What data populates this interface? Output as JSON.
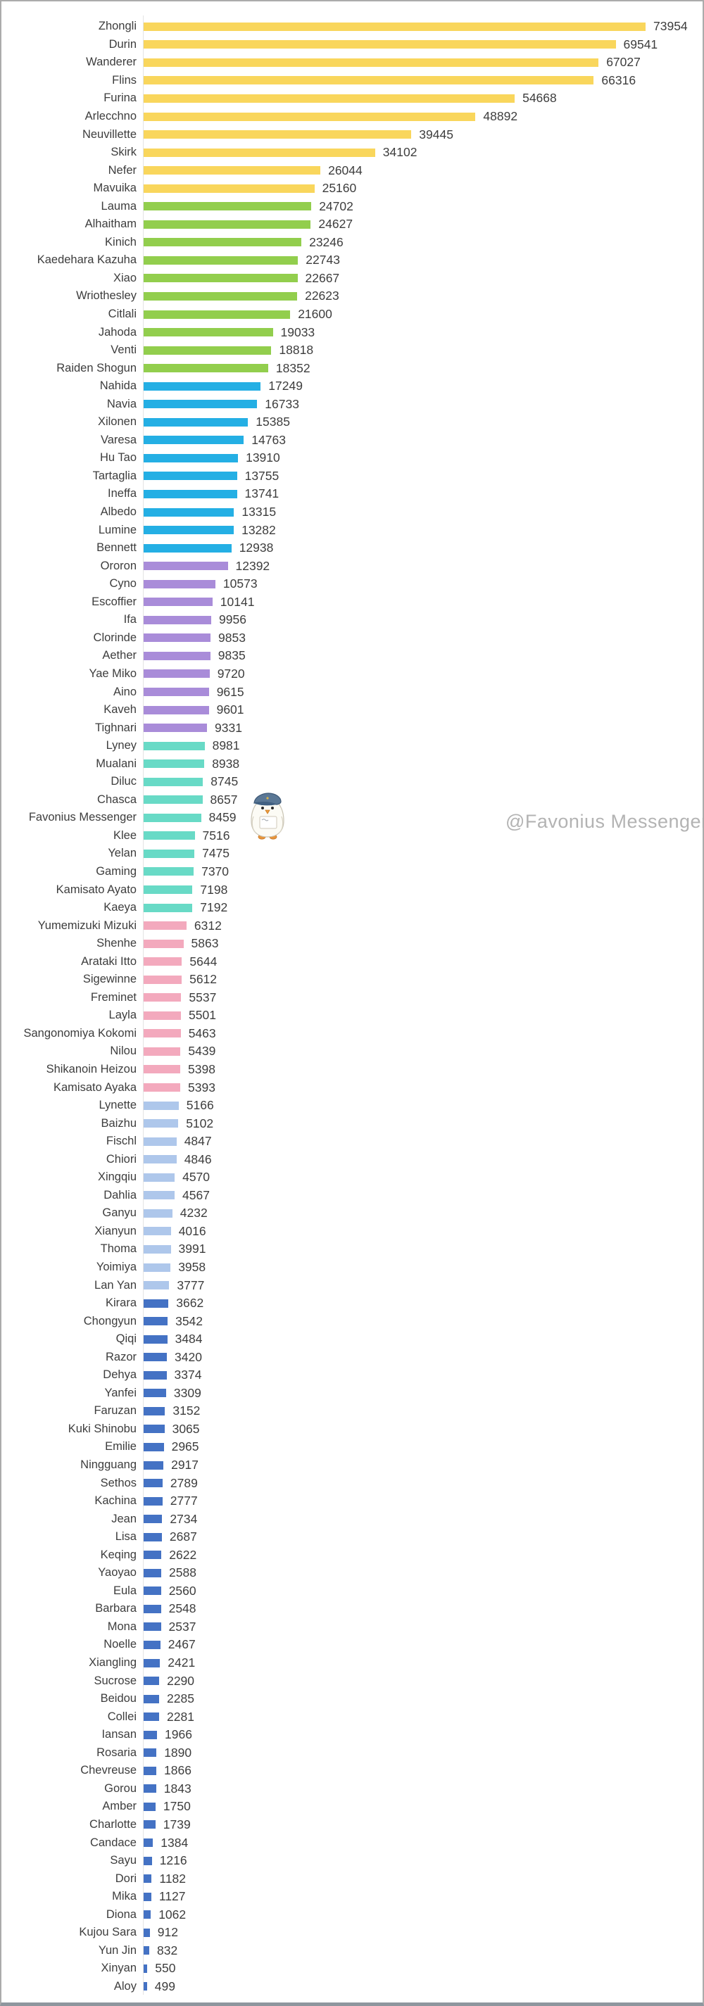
{
  "watermark": "@Favonius Messenger",
  "mascot": "favonius-messenger-bird",
  "colors": {
    "gold": "#F9D65C",
    "green": "#92CE4D",
    "cyan": "#24AFE4",
    "purple": "#A98CD9",
    "teal": "#68DAC6",
    "pink": "#F3A9BD",
    "periwinkle": "#AEC7EB",
    "royal": "#4472C4"
  },
  "text_color": "#3d3d3d",
  "axis_color": "#e3e3e3",
  "chart_data": {
    "type": "bar",
    "orientation": "horizontal",
    "title": "",
    "xlabel": "",
    "ylabel": "",
    "xlim": [
      0,
      76000
    ],
    "grid": false,
    "legend": false,
    "value_labels": true,
    "series": [
      {
        "name": "Zhongli",
        "value": 73954,
        "group": "gold"
      },
      {
        "name": "Durin",
        "value": 69541,
        "group": "gold"
      },
      {
        "name": "Wanderer",
        "value": 67027,
        "group": "gold"
      },
      {
        "name": "Flins",
        "value": 66316,
        "group": "gold"
      },
      {
        "name": "Furina",
        "value": 54668,
        "group": "gold"
      },
      {
        "name": "Arlecchno",
        "value": 48892,
        "group": "gold"
      },
      {
        "name": "Neuvillette",
        "value": 39445,
        "group": "gold"
      },
      {
        "name": "Skirk",
        "value": 34102,
        "group": "gold"
      },
      {
        "name": "Nefer",
        "value": 26044,
        "group": "gold"
      },
      {
        "name": "Mavuika",
        "value": 25160,
        "group": "gold"
      },
      {
        "name": "Lauma",
        "value": 24702,
        "group": "green"
      },
      {
        "name": "Alhaitham",
        "value": 24627,
        "group": "green"
      },
      {
        "name": "Kinich",
        "value": 23246,
        "group": "green"
      },
      {
        "name": "Kaedehara Kazuha",
        "value": 22743,
        "group": "green"
      },
      {
        "name": "Xiao",
        "value": 22667,
        "group": "green"
      },
      {
        "name": "Wriothesley",
        "value": 22623,
        "group": "green"
      },
      {
        "name": "Citlali",
        "value": 21600,
        "group": "green"
      },
      {
        "name": "Jahoda",
        "value": 19033,
        "group": "green"
      },
      {
        "name": "Venti",
        "value": 18818,
        "group": "green"
      },
      {
        "name": "Raiden Shogun",
        "value": 18352,
        "group": "green"
      },
      {
        "name": "Nahida",
        "value": 17249,
        "group": "cyan"
      },
      {
        "name": "Navia",
        "value": 16733,
        "group": "cyan"
      },
      {
        "name": "Xilonen",
        "value": 15385,
        "group": "cyan"
      },
      {
        "name": "Varesa",
        "value": 14763,
        "group": "cyan"
      },
      {
        "name": "Hu Tao",
        "value": 13910,
        "group": "cyan"
      },
      {
        "name": "Tartaglia",
        "value": 13755,
        "group": "cyan"
      },
      {
        "name": "Ineffa",
        "value": 13741,
        "group": "cyan"
      },
      {
        "name": "Albedo",
        "value": 13315,
        "group": "cyan"
      },
      {
        "name": "Lumine",
        "value": 13282,
        "group": "cyan"
      },
      {
        "name": "Bennett",
        "value": 12938,
        "group": "cyan"
      },
      {
        "name": "Ororon",
        "value": 12392,
        "group": "purple"
      },
      {
        "name": "Cyno",
        "value": 10573,
        "group": "purple"
      },
      {
        "name": "Escoffier",
        "value": 10141,
        "group": "purple"
      },
      {
        "name": "Ifa",
        "value": 9956,
        "group": "purple"
      },
      {
        "name": "Clorinde",
        "value": 9853,
        "group": "purple"
      },
      {
        "name": "Aether",
        "value": 9835,
        "group": "purple"
      },
      {
        "name": "Yae Miko",
        "value": 9720,
        "group": "purple"
      },
      {
        "name": "Aino",
        "value": 9615,
        "group": "purple"
      },
      {
        "name": "Kaveh",
        "value": 9601,
        "group": "purple"
      },
      {
        "name": "Tighnari",
        "value": 9331,
        "group": "purple"
      },
      {
        "name": "Lyney",
        "value": 8981,
        "group": "teal"
      },
      {
        "name": "Mualani",
        "value": 8938,
        "group": "teal"
      },
      {
        "name": "Diluc",
        "value": 8745,
        "group": "teal"
      },
      {
        "name": "Chasca",
        "value": 8657,
        "group": "teal"
      },
      {
        "name": "Favonius Messenger",
        "value": 8459,
        "group": "teal"
      },
      {
        "name": "Klee",
        "value": 7516,
        "group": "teal"
      },
      {
        "name": "Yelan",
        "value": 7475,
        "group": "teal"
      },
      {
        "name": "Gaming",
        "value": 7370,
        "group": "teal"
      },
      {
        "name": "Kamisato Ayato",
        "value": 7198,
        "group": "teal"
      },
      {
        "name": "Kaeya",
        "value": 7192,
        "group": "teal"
      },
      {
        "name": "Yumemizuki Mizuki",
        "value": 6312,
        "group": "pink"
      },
      {
        "name": "Shenhe",
        "value": 5863,
        "group": "pink"
      },
      {
        "name": "Arataki Itto",
        "value": 5644,
        "group": "pink"
      },
      {
        "name": "Sigewinne",
        "value": 5612,
        "group": "pink"
      },
      {
        "name": "Freminet",
        "value": 5537,
        "group": "pink"
      },
      {
        "name": "Layla",
        "value": 5501,
        "group": "pink"
      },
      {
        "name": "Sangonomiya Kokomi",
        "value": 5463,
        "group": "pink"
      },
      {
        "name": "Nilou",
        "value": 5439,
        "group": "pink"
      },
      {
        "name": "Shikanoin Heizou",
        "value": 5398,
        "group": "pink"
      },
      {
        "name": "Kamisato Ayaka",
        "value": 5393,
        "group": "pink"
      },
      {
        "name": "Lynette",
        "value": 5166,
        "group": "periwinkle"
      },
      {
        "name": "Baizhu",
        "value": 5102,
        "group": "periwinkle"
      },
      {
        "name": "Fischl",
        "value": 4847,
        "group": "periwinkle"
      },
      {
        "name": "Chiori",
        "value": 4846,
        "group": "periwinkle"
      },
      {
        "name": "Xingqiu",
        "value": 4570,
        "group": "periwinkle"
      },
      {
        "name": "Dahlia",
        "value": 4567,
        "group": "periwinkle"
      },
      {
        "name": "Ganyu",
        "value": 4232,
        "group": "periwinkle"
      },
      {
        "name": "Xianyun",
        "value": 4016,
        "group": "periwinkle"
      },
      {
        "name": "Thoma",
        "value": 3991,
        "group": "periwinkle"
      },
      {
        "name": "Yoimiya",
        "value": 3958,
        "group": "periwinkle"
      },
      {
        "name": "Lan Yan",
        "value": 3777,
        "group": "periwinkle"
      },
      {
        "name": "Kirara",
        "value": 3662,
        "group": "royal"
      },
      {
        "name": "Chongyun",
        "value": 3542,
        "group": "royal"
      },
      {
        "name": "Qiqi",
        "value": 3484,
        "group": "royal"
      },
      {
        "name": "Razor",
        "value": 3420,
        "group": "royal"
      },
      {
        "name": "Dehya",
        "value": 3374,
        "group": "royal"
      },
      {
        "name": "Yanfei",
        "value": 3309,
        "group": "royal"
      },
      {
        "name": "Faruzan",
        "value": 3152,
        "group": "royal"
      },
      {
        "name": "Kuki Shinobu",
        "value": 3065,
        "group": "royal"
      },
      {
        "name": "Emilie",
        "value": 2965,
        "group": "royal"
      },
      {
        "name": "Ningguang",
        "value": 2917,
        "group": "royal"
      },
      {
        "name": "Sethos",
        "value": 2789,
        "group": "royal"
      },
      {
        "name": "Kachina",
        "value": 2777,
        "group": "royal"
      },
      {
        "name": "Jean",
        "value": 2734,
        "group": "royal"
      },
      {
        "name": "Lisa",
        "value": 2687,
        "group": "royal"
      },
      {
        "name": "Keqing",
        "value": 2622,
        "group": "royal"
      },
      {
        "name": "Yaoyao",
        "value": 2588,
        "group": "royal"
      },
      {
        "name": "Eula",
        "value": 2560,
        "group": "royal"
      },
      {
        "name": "Barbara",
        "value": 2548,
        "group": "royal"
      },
      {
        "name": "Mona",
        "value": 2537,
        "group": "royal"
      },
      {
        "name": "Noelle",
        "value": 2467,
        "group": "royal"
      },
      {
        "name": "Xiangling",
        "value": 2421,
        "group": "royal"
      },
      {
        "name": "Sucrose",
        "value": 2290,
        "group": "royal"
      },
      {
        "name": "Beidou",
        "value": 2285,
        "group": "royal"
      },
      {
        "name": "Collei",
        "value": 2281,
        "group": "royal"
      },
      {
        "name": "Iansan",
        "value": 1966,
        "group": "royal"
      },
      {
        "name": "Rosaria",
        "value": 1890,
        "group": "royal"
      },
      {
        "name": "Chevreuse",
        "value": 1866,
        "group": "royal"
      },
      {
        "name": "Gorou",
        "value": 1843,
        "group": "royal"
      },
      {
        "name": "Amber",
        "value": 1750,
        "group": "royal"
      },
      {
        "name": "Charlotte",
        "value": 1739,
        "group": "royal"
      },
      {
        "name": "Candace",
        "value": 1384,
        "group": "royal"
      },
      {
        "name": "Sayu",
        "value": 1216,
        "group": "royal"
      },
      {
        "name": "Dori",
        "value": 1182,
        "group": "royal"
      },
      {
        "name": "Mika",
        "value": 1127,
        "group": "royal"
      },
      {
        "name": "Diona",
        "value": 1062,
        "group": "royal"
      },
      {
        "name": "Kujou Sara",
        "value": 912,
        "group": "royal"
      },
      {
        "name": "Yun Jin",
        "value": 832,
        "group": "royal"
      },
      {
        "name": "Xinyan",
        "value": 550,
        "group": "royal"
      },
      {
        "name": "Aloy",
        "value": 499,
        "group": "royal"
      }
    ]
  }
}
